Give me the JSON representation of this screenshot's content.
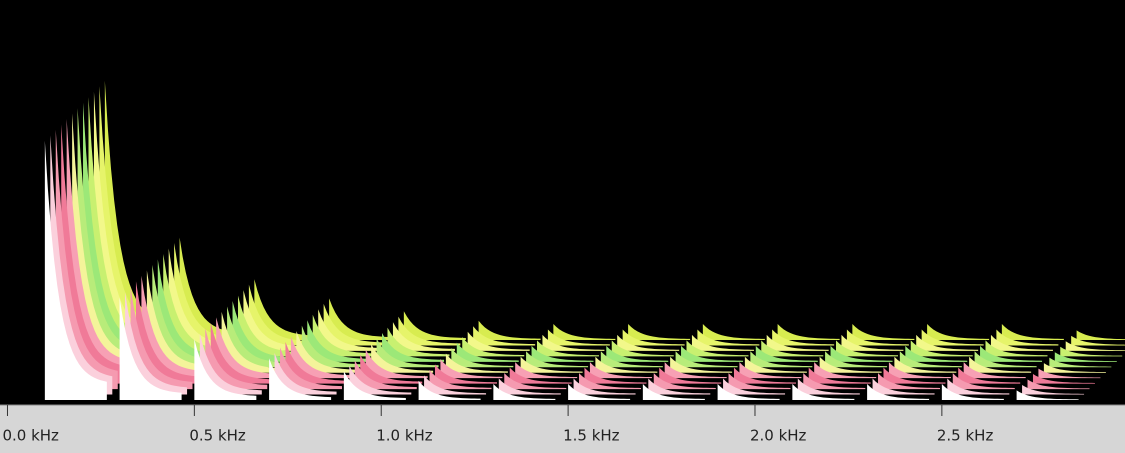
{
  "chart_data": {
    "type": "waterfall",
    "x": [
      0.1,
      0.3,
      0.5,
      0.7,
      0.9,
      1.1,
      1.3,
      1.5,
      1.7,
      1.9,
      2.1,
      2.3,
      2.5,
      2.7
    ],
    "values": [
      81,
      32,
      19,
      13,
      9,
      6,
      5,
      5,
      5,
      5,
      5,
      5,
      5,
      3
    ],
    "xlim": [
      -0.02,
      2.99
    ],
    "ylim": [
      0,
      100
    ],
    "xticks": [
      {
        "value": 0.0,
        "label": "0.0 kHz"
      },
      {
        "value": 0.5,
        "label": "0.5 kHz"
      },
      {
        "value": 1.0,
        "label": "1.0 kHz"
      },
      {
        "value": 1.5,
        "label": "1.5 kHz"
      },
      {
        "value": 2.0,
        "label": "2.0 kHz"
      },
      {
        "value": 2.5,
        "label": "2.5 kHz"
      }
    ]
  }
}
